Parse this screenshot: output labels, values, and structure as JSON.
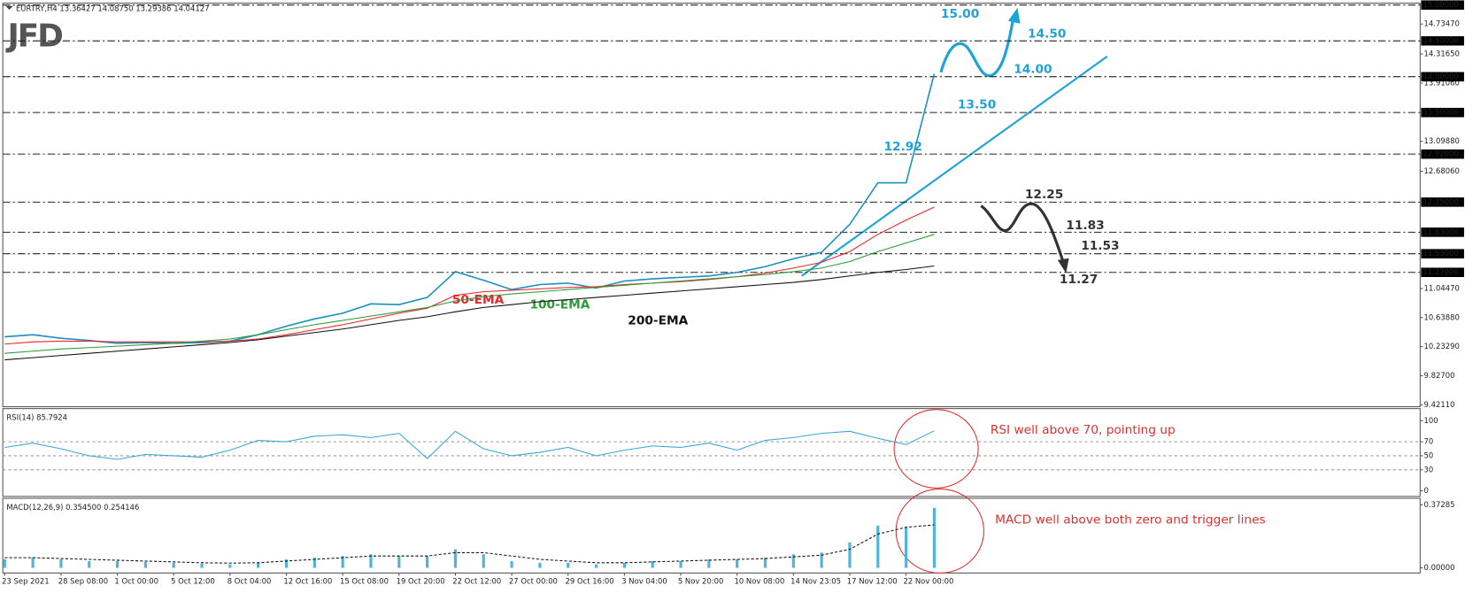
{
  "header": {
    "symbol": "EURTRY,H4  13.36427 14.08750 13.29386 14.04127",
    "logo": "JFD"
  },
  "chart_data": [
    {
      "type": "line",
      "categories": [
        "23 Sep 2021",
        null,
        "28 Sep 08:00",
        null,
        "1 Oct 00:00",
        null,
        "5 Oct 12:00",
        null,
        "8 Oct 04:00",
        null,
        "12 Oct 16:00",
        null,
        "15 Oct 08:00",
        null,
        "19 Oct 20:00",
        null,
        "22 Oct 12:00",
        null,
        "27 Oct 00:00",
        null,
        "29 Oct 16:00",
        null,
        "3 Nov 04:00",
        null,
        "5 Nov 20:00",
        null,
        "10 Nov 08:00",
        null,
        "14 Nov 23:05",
        null,
        "17 Nov 12:00",
        null,
        "22 Nov 00:00",
        null
      ],
      "series": [
        {
          "color": "#1a8fc0",
          "values": [
            10.37,
            10.4,
            10.35,
            10.32,
            10.28,
            10.29,
            10.28,
            10.29,
            10.31,
            10.4,
            10.52,
            10.62,
            10.7,
            10.83,
            10.82,
            10.92,
            11.28,
            11.16,
            11.03,
            11.1,
            11.12,
            11.05,
            11.15,
            11.18,
            11.2,
            11.22,
            11.27,
            11.35,
            11.46,
            11.55,
            11.94,
            12.52,
            12.52,
            14.04127
          ]
        },
        {
          "name": "50-EMA",
          "color": "#e8262b",
          "values": [
            10.27,
            10.3,
            10.31,
            10.31,
            10.3,
            10.3,
            10.3,
            10.3,
            10.31,
            10.34,
            10.4,
            10.47,
            10.54,
            10.62,
            10.7,
            10.77,
            10.95,
            11.0,
            11.02,
            11.04,
            11.06,
            11.07,
            11.1,
            11.12,
            11.14,
            11.17,
            11.21,
            11.26,
            11.33,
            11.41,
            11.56,
            11.8,
            12.0,
            12.18
          ]
        },
        {
          "name": "100-EMA",
          "color": "#2e9a3a",
          "values": [
            10.14,
            10.17,
            10.2,
            10.22,
            10.24,
            10.26,
            10.28,
            10.31,
            10.34,
            10.4,
            10.47,
            10.54,
            10.6,
            10.66,
            10.72,
            10.78,
            10.87,
            10.93,
            10.97,
            11.0,
            11.03,
            11.06,
            11.09,
            11.12,
            11.15,
            11.18,
            11.21,
            11.24,
            11.28,
            11.33,
            11.42,
            11.56,
            11.68,
            11.8
          ]
        },
        {
          "name": "200-EMA",
          "color": "#111111",
          "values": [
            10.05,
            10.08,
            10.11,
            10.14,
            10.17,
            10.2,
            10.23,
            10.26,
            10.29,
            10.33,
            10.38,
            10.43,
            10.48,
            10.54,
            10.6,
            10.65,
            10.72,
            10.78,
            10.82,
            10.86,
            10.89,
            10.92,
            10.95,
            10.98,
            11.01,
            11.04,
            11.07,
            11.1,
            11.13,
            11.17,
            11.22,
            11.27,
            11.31,
            11.36
          ]
        }
      ],
      "ylim": [
        9.4211,
        15.0
      ],
      "yticks": [
        {
          "value": 14.7347,
          "label": "14.73470"
        },
        {
          "value": 14.3165,
          "label": "14.31650"
        },
        {
          "value": 13.9106,
          "label": "13.91060"
        },
        {
          "value": 13.0988,
          "label": "13.09880"
        },
        {
          "value": 12.6806,
          "label": "12.68060"
        },
        {
          "value": 11.0447,
          "label": "11.04470"
        },
        {
          "value": 10.6388,
          "label": "10.63880"
        },
        {
          "value": 10.2329,
          "label": "10.23290"
        },
        {
          "value": 9.827,
          "label": "9.82700"
        },
        {
          "value": 9.4211,
          "label": "9.42110"
        }
      ],
      "levels": [
        {
          "value": 15.0,
          "label": "15.00000"
        },
        {
          "value": 14.5,
          "label": "14.50000"
        },
        {
          "value": 14.0,
          "label": "14.00000"
        },
        {
          "value": 13.5,
          "label": "13.50000"
        },
        {
          "value": 12.92,
          "label": "12.92000"
        },
        {
          "value": 12.25,
          "label": "12.25000"
        },
        {
          "value": 11.83,
          "label": "11.83000"
        },
        {
          "value": 11.53,
          "label": "11.53000"
        },
        {
          "value": 11.27,
          "label": "11.27000"
        }
      ],
      "annotations": [
        {
          "text": "15.00",
          "color": "#1ea3d8"
        },
        {
          "text": "14.50",
          "color": "#1ea3d8"
        },
        {
          "text": "14.00",
          "color": "#1ea3d8"
        },
        {
          "text": "13.50",
          "color": "#1ea3d8"
        },
        {
          "text": "12.92",
          "color": "#1ea3d8"
        },
        {
          "text": "12.25",
          "color": "#333333"
        },
        {
          "text": "11.83",
          "color": "#333333"
        },
        {
          "text": "11.53",
          "color": "#333333"
        },
        {
          "text": "11.27",
          "color": "#333333"
        }
      ]
    },
    {
      "type": "line",
      "title": "RSI(14) 85.7924",
      "series": [
        {
          "color": "#3aa6d6",
          "values": [
            62,
            68,
            60,
            50,
            45,
            52,
            50,
            48,
            58,
            72,
            70,
            78,
            80,
            76,
            82,
            46,
            85,
            60,
            50,
            55,
            62,
            50,
            58,
            64,
            62,
            68,
            58,
            72,
            76,
            82,
            85,
            75,
            66,
            85.7924
          ]
        }
      ],
      "ylim": [
        -8,
        116
      ],
      "yticks": [
        100,
        70,
        50,
        30,
        0
      ],
      "levels": [
        70,
        50,
        30
      ],
      "annotation": {
        "text": "RSI well above 70, pointing up",
        "color": "#e03030"
      }
    },
    {
      "type": "bar",
      "title": "MACD(12,26,9) 0.354500 0.254146",
      "series": [
        {
          "type": "bar",
          "color": "#4fb3dc",
          "values": [
            0.05,
            0.06,
            0.05,
            0.04,
            0.04,
            0.035,
            0.03,
            0.025,
            0.02,
            0.03,
            0.05,
            0.06,
            0.07,
            0.08,
            0.07,
            0.07,
            0.11,
            0.08,
            0.04,
            0.03,
            0.03,
            0.02,
            0.03,
            0.04,
            0.04,
            0.05,
            0.05,
            0.06,
            0.08,
            0.09,
            0.15,
            0.25,
            0.24,
            0.3545
          ]
        },
        {
          "type": "line",
          "style": "dashed",
          "color": "#111111",
          "values": [
            0.06,
            0.06,
            0.055,
            0.05,
            0.045,
            0.04,
            0.035,
            0.03,
            0.028,
            0.03,
            0.04,
            0.05,
            0.06,
            0.07,
            0.07,
            0.07,
            0.09,
            0.09,
            0.07,
            0.05,
            0.04,
            0.03,
            0.03,
            0.035,
            0.04,
            0.045,
            0.05,
            0.055,
            0.065,
            0.075,
            0.11,
            0.2,
            0.24,
            0.254146
          ]
        }
      ],
      "ylim": [
        -0.0306,
        0.4115
      ],
      "yticks": [
        0.37285,
        {
          "value": 0,
          "label": "0.00000"
        }
      ],
      "annotation": {
        "text": "MACD well above both zero and trigger lines",
        "color": "#e03030"
      }
    }
  ]
}
